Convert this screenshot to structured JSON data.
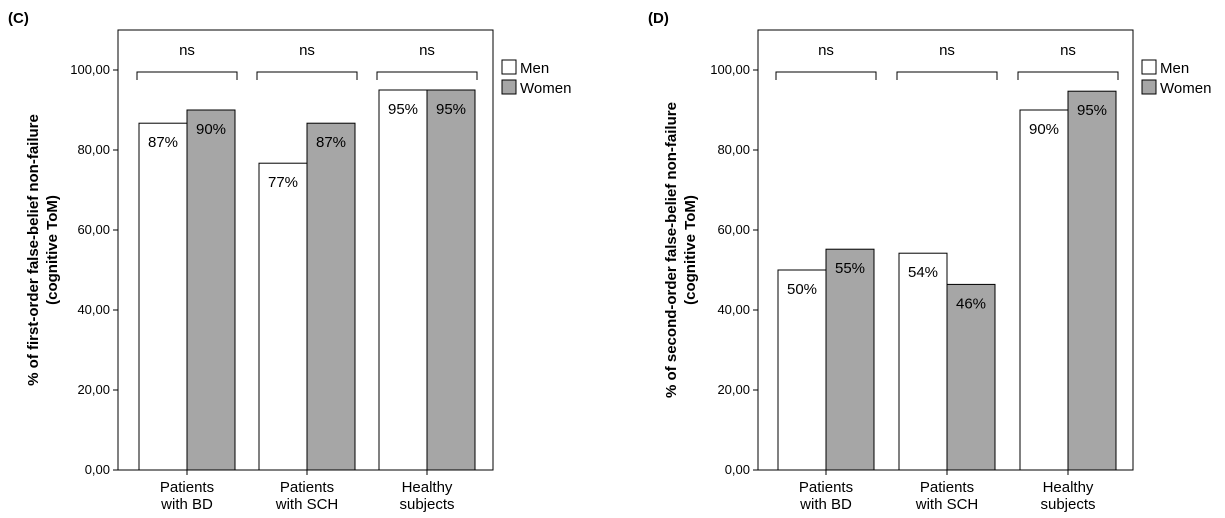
{
  "chart_data": [
    {
      "type": "bar",
      "panel": "(C)",
      "ylabel": [
        "% of first-order false-belief non-failure",
        "(cognitive ToM)"
      ],
      "categories": [
        [
          "Patients",
          "with BD"
        ],
        [
          "Patients",
          "with SCH"
        ],
        [
          "Healthy",
          "subjects"
        ]
      ],
      "ylim": [
        0,
        110
      ],
      "yticks": [
        0,
        20,
        40,
        60,
        80,
        100
      ],
      "ytick_labels": [
        "0,00",
        "20,00",
        "40,00",
        "60,00",
        "80,00",
        "100,00"
      ],
      "series": [
        {
          "name": "Men",
          "color": "#ffffff",
          "values": [
            86.7,
            76.7,
            95
          ],
          "labels": [
            "87%",
            "77%",
            "95%"
          ]
        },
        {
          "name": "Women",
          "color": "#a6a6a6",
          "values": [
            90,
            86.7,
            95
          ],
          "labels": [
            "90%",
            "87%",
            "95%"
          ]
        }
      ],
      "significance": [
        "ns",
        "ns",
        "ns"
      ],
      "grid": false,
      "legend_position": "right"
    },
    {
      "type": "bar",
      "panel": "(D)",
      "ylabel": [
        "% of second-order false-belief non-failure",
        "(cognitive ToM)"
      ],
      "categories": [
        [
          "Patients",
          "with BD"
        ],
        [
          "Patients",
          "with SCH"
        ],
        [
          "Healthy",
          "subjects"
        ]
      ],
      "ylim": [
        0,
        110
      ],
      "yticks": [
        0,
        20,
        40,
        60,
        80,
        100
      ],
      "ytick_labels": [
        "0,00",
        "20,00",
        "40,00",
        "60,00",
        "80,00",
        "100,00"
      ],
      "series": [
        {
          "name": "Men",
          "color": "#ffffff",
          "values": [
            50,
            54.2,
            90
          ],
          "labels": [
            "50%",
            "54%",
            "90%"
          ]
        },
        {
          "name": "Women",
          "color": "#a6a6a6",
          "values": [
            55.2,
            46.4,
            94.7
          ],
          "labels": [
            "55%",
            "46%",
            "95%"
          ]
        }
      ],
      "significance": [
        "ns",
        "ns",
        "ns"
      ],
      "grid": false,
      "legend_position": "right"
    }
  ]
}
